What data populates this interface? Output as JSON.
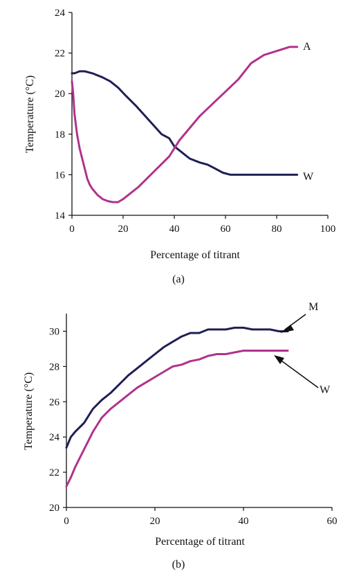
{
  "chart_data": [
    {
      "type": "line",
      "caption": "(a)",
      "xlabel": "Percentage of titrant",
      "ylabel": "Temperature (°C)",
      "xlim": [
        0,
        100
      ],
      "ylim": [
        14,
        24
      ],
      "xticks": [
        0,
        20,
        40,
        60,
        80,
        100
      ],
      "yticks": [
        14,
        16,
        18,
        20,
        22,
        24
      ],
      "grid": false,
      "series": [
        {
          "name": "W",
          "color": "#1f1f55",
          "x": [
            0,
            1,
            3,
            5,
            8,
            12,
            15,
            18,
            21,
            25,
            30,
            35,
            38,
            40,
            43,
            46,
            50,
            53,
            56,
            59,
            62,
            66,
            70,
            75,
            80,
            85,
            88
          ],
          "y": [
            21.0,
            21.0,
            21.1,
            21.1,
            21.0,
            20.8,
            20.6,
            20.3,
            19.9,
            19.4,
            18.7,
            18.0,
            17.8,
            17.4,
            17.1,
            16.8,
            16.6,
            16.5,
            16.3,
            16.1,
            16.0,
            16.0,
            16.0,
            16.0,
            16.0,
            16.0,
            16.0
          ]
        },
        {
          "name": "A",
          "color": "#b0328c",
          "x": [
            0,
            0.5,
            1,
            2,
            3,
            4,
            5,
            6,
            7,
            8,
            10,
            12,
            14,
            16,
            18,
            20,
            23,
            26,
            30,
            34,
            38,
            42,
            46,
            50,
            55,
            60,
            65,
            70,
            75,
            80,
            85,
            88
          ],
          "y": [
            20.6,
            20.0,
            19.0,
            18.0,
            17.3,
            16.8,
            16.3,
            15.8,
            15.5,
            15.3,
            15.0,
            14.8,
            14.7,
            14.65,
            14.65,
            14.8,
            15.1,
            15.4,
            15.9,
            16.4,
            16.9,
            17.7,
            18.3,
            18.9,
            19.5,
            20.1,
            20.7,
            21.5,
            21.9,
            22.1,
            22.3,
            22.3
          ]
        }
      ]
    },
    {
      "type": "line",
      "caption": "(b)",
      "xlabel": "Percentage of titrant",
      "ylabel": "Temperature (°C)",
      "xlim": [
        0,
        60
      ],
      "ylim": [
        20,
        31
      ],
      "xticks": [
        0,
        20,
        40,
        60
      ],
      "yticks": [
        20,
        22,
        24,
        26,
        28,
        30
      ],
      "grid": false,
      "series": [
        {
          "name": "M",
          "color": "#1f1f55",
          "x": [
            0,
            1,
            2,
            4,
            6,
            8,
            10,
            12,
            14,
            16,
            18,
            20,
            22,
            24,
            26,
            28,
            30,
            32,
            34,
            36,
            38,
            40,
            42,
            44,
            46,
            48,
            50
          ],
          "y": [
            23.4,
            24.0,
            24.3,
            24.8,
            25.6,
            26.1,
            26.5,
            27.0,
            27.5,
            27.9,
            28.3,
            28.7,
            29.1,
            29.4,
            29.7,
            29.9,
            29.9,
            30.1,
            30.1,
            30.1,
            30.2,
            30.2,
            30.1,
            30.1,
            30.1,
            30.0,
            30.0
          ]
        },
        {
          "name": "W",
          "color": "#b0328c",
          "x": [
            0,
            1,
            2,
            3,
            4,
            5,
            6,
            8,
            10,
            12,
            14,
            16,
            18,
            20,
            22,
            24,
            26,
            28,
            30,
            32,
            34,
            36,
            38,
            40,
            42,
            44,
            46,
            48,
            50
          ],
          "y": [
            21.2,
            21.7,
            22.3,
            22.8,
            23.3,
            23.8,
            24.3,
            25.1,
            25.6,
            26.0,
            26.4,
            26.8,
            27.1,
            27.4,
            27.7,
            28.0,
            28.1,
            28.3,
            28.4,
            28.6,
            28.7,
            28.7,
            28.8,
            28.9,
            28.9,
            28.9,
            28.9,
            28.9,
            28.9
          ]
        }
      ]
    }
  ]
}
